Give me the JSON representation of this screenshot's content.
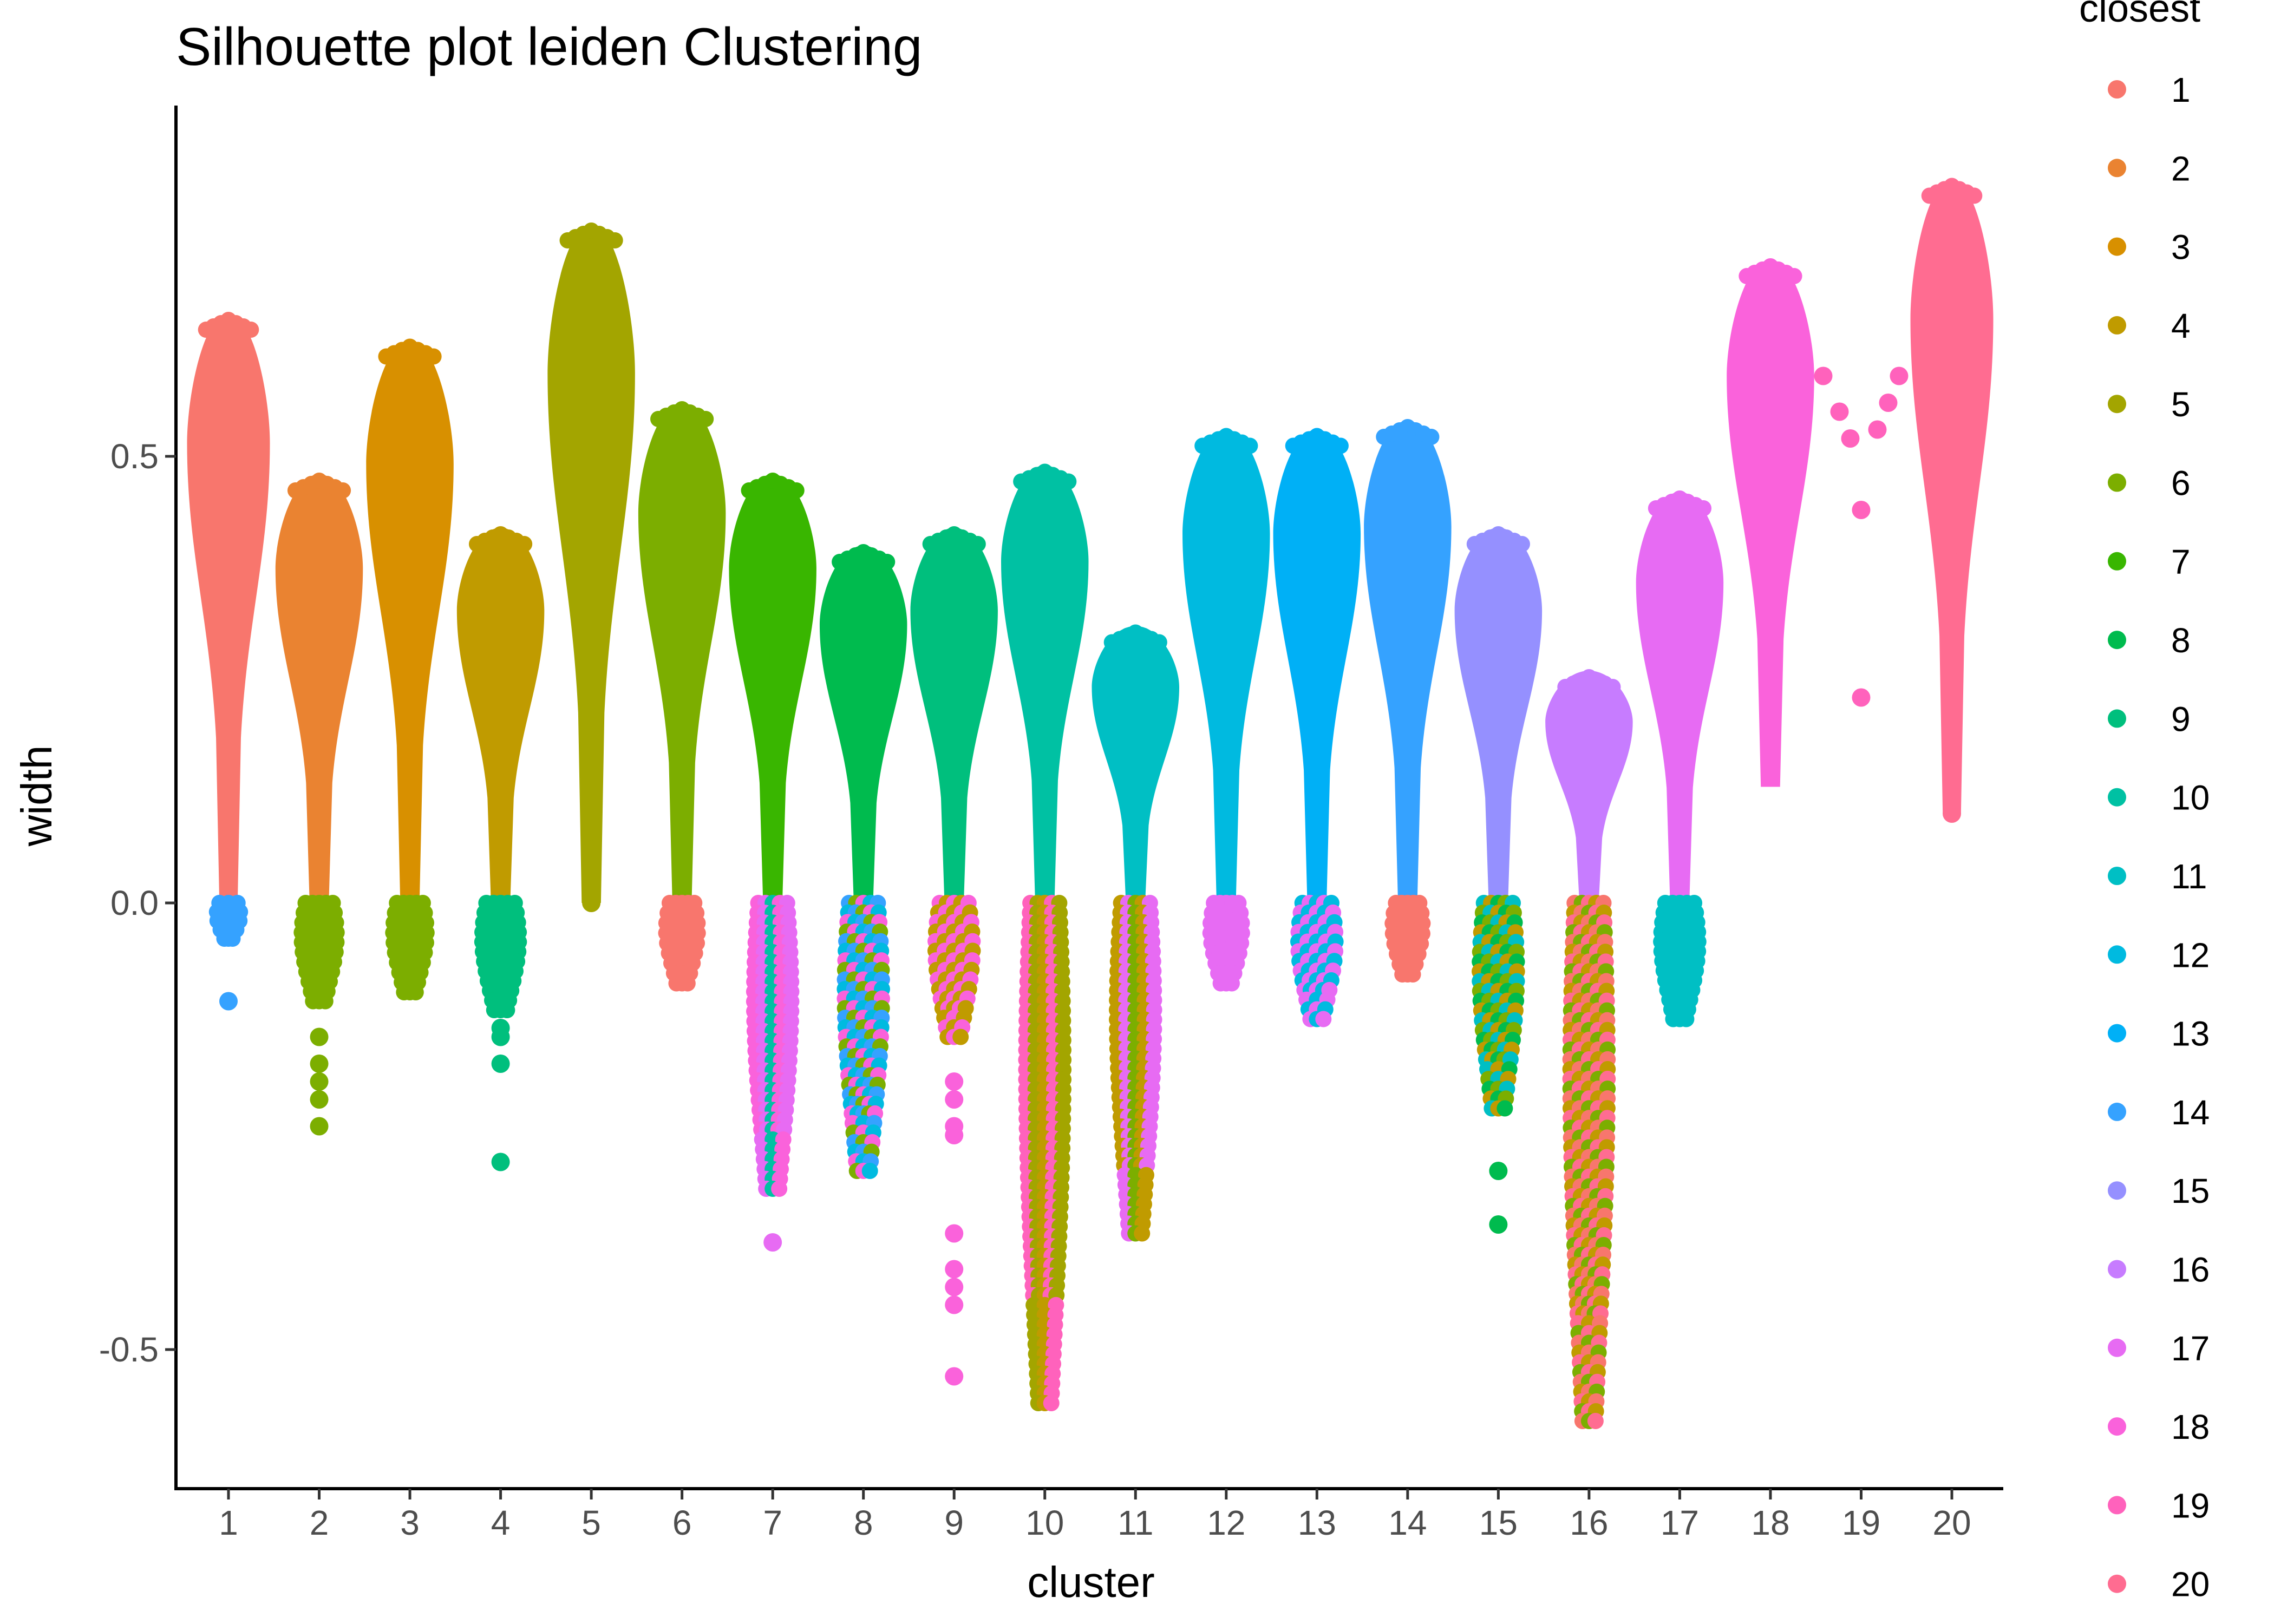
{
  "chart_data": {
    "type": "scatter",
    "title": "Silhouette plot leiden Clustering",
    "xlabel": "cluster",
    "ylabel": "width",
    "categories": [
      "1",
      "2",
      "3",
      "4",
      "5",
      "6",
      "7",
      "8",
      "9",
      "10",
      "11",
      "12",
      "13",
      "14",
      "15",
      "16",
      "17",
      "18",
      "19",
      "20"
    ],
    "ylim": [
      -0.65,
      0.88
    ],
    "yticks": [
      {
        "value": 0.5,
        "label": "0.5"
      },
      {
        "value": 0.0,
        "label": "0.0"
      },
      {
        "value": -0.5,
        "label": "-0.5"
      }
    ],
    "grid": false,
    "legend": {
      "title": "closest",
      "position": "right",
      "entries": [
        {
          "label": "1",
          "color": "#F8766D"
        },
        {
          "label": "2",
          "color": "#EA8331"
        },
        {
          "label": "3",
          "color": "#D89000"
        },
        {
          "label": "4",
          "color": "#C09B00"
        },
        {
          "label": "5",
          "color": "#A3A500"
        },
        {
          "label": "6",
          "color": "#7CAE00"
        },
        {
          "label": "7",
          "color": "#39B600"
        },
        {
          "label": "8",
          "color": "#00BB4E"
        },
        {
          "label": "9",
          "color": "#00BF7D"
        },
        {
          "label": "10",
          "color": "#00C1A3"
        },
        {
          "label": "11",
          "color": "#00BFC4"
        },
        {
          "label": "12",
          "color": "#00BAE0"
        },
        {
          "label": "13",
          "color": "#00B0F6"
        },
        {
          "label": "14",
          "color": "#35A2FF"
        },
        {
          "label": "15",
          "color": "#9590FF"
        },
        {
          "label": "16",
          "color": "#C77CFF"
        },
        {
          "label": "17",
          "color": "#E76BF3"
        },
        {
          "label": "18",
          "color": "#FA62DB"
        },
        {
          "label": "19",
          "color": "#FF62BC"
        },
        {
          "label": "20",
          "color": "#FF6C91"
        }
      ]
    },
    "clusters": [
      {
        "cluster": "1",
        "color": "#F8766D",
        "top": 0.66,
        "neg_min": -0.04,
        "outliers": [
          -0.11
        ],
        "neg_colors": [
          "#35A2FF"
        ],
        "halfwidth": 0.9
      },
      {
        "cluster": "2",
        "color": "#EA8331",
        "top": 0.48,
        "neg_min": -0.11,
        "outliers": [
          -0.15,
          -0.18,
          -0.2,
          -0.22,
          -0.25
        ],
        "neg_colors": [
          "#7CAE00"
        ],
        "halfwidth": 0.95
      },
      {
        "cluster": "3",
        "color": "#D89000",
        "top": 0.63,
        "neg_min": -0.1,
        "outliers": [],
        "neg_colors": [
          "#7CAE00"
        ],
        "halfwidth": 0.95
      },
      {
        "cluster": "4",
        "color": "#C09B00",
        "top": 0.42,
        "neg_min": -0.12,
        "outliers": [
          -0.14,
          -0.15,
          -0.18,
          -0.29
        ],
        "neg_colors": [
          "#00BF7D"
        ],
        "halfwidth": 0.95
      },
      {
        "cluster": "5",
        "color": "#A3A500",
        "top": 0.76,
        "neg_min": 0.0,
        "outliers": [
          0.66,
          0.6,
          0.55,
          0.5,
          0.45,
          0.4,
          0.37,
          0.33,
          0.27,
          0.22,
          0.17,
          0.12,
          0.08,
          0.01,
          0.0
        ],
        "neg_colors": [],
        "halfwidth": 0.95
      },
      {
        "cluster": "6",
        "color": "#7CAE00",
        "top": 0.56,
        "neg_min": -0.09,
        "outliers": [],
        "neg_colors": [
          "#F8766D"
        ],
        "halfwidth": 0.95
      },
      {
        "cluster": "7",
        "color": "#39B600",
        "top": 0.48,
        "neg_min": -0.32,
        "outliers": [
          -0.38
        ],
        "neg_colors": [
          "#00C1A3",
          "#FA62DB",
          "#E76BF3"
        ],
        "halfwidth": 0.95
      },
      {
        "cluster": "8",
        "color": "#00BB4E",
        "top": 0.4,
        "neg_min": -0.3,
        "outliers": [],
        "neg_colors": [
          "#00BAE0",
          "#35A2FF",
          "#7CAE00",
          "#FA62DB"
        ],
        "halfwidth": 0.95
      },
      {
        "cluster": "9",
        "color": "#00BF7D",
        "top": 0.42,
        "neg_min": -0.15,
        "outliers": [
          -0.2,
          -0.22,
          -0.25,
          -0.26,
          -0.37,
          -0.41,
          -0.43,
          -0.45,
          -0.53
        ],
        "neg_colors": [
          "#C09B00",
          "#FA62DB"
        ],
        "halfwidth": 0.95
      },
      {
        "cluster": "10",
        "color": "#00C1A3",
        "top": 0.49,
        "neg_min": -0.56,
        "outliers": [],
        "neg_colors": [
          "#C09B00",
          "#FF62BC",
          "#A3A500"
        ],
        "halfwidth": 0.95
      },
      {
        "cluster": "11",
        "color": "#00BFC4",
        "top": 0.31,
        "neg_min": -0.37,
        "outliers": [],
        "neg_colors": [
          "#7CAE00",
          "#C09B00",
          "#E76BF3"
        ],
        "halfwidth": 0.95
      },
      {
        "cluster": "12",
        "color": "#00BAE0",
        "top": 0.53,
        "neg_min": -0.09,
        "outliers": [],
        "neg_colors": [
          "#E76BF3"
        ],
        "halfwidth": 0.95
      },
      {
        "cluster": "13",
        "color": "#00B0F6",
        "top": 0.53,
        "neg_min": -0.13,
        "outliers": [],
        "neg_colors": [
          "#E76BF3",
          "#00BAE0"
        ],
        "halfwidth": 0.95
      },
      {
        "cluster": "14",
        "color": "#35A2FF",
        "top": 0.54,
        "neg_min": -0.08,
        "outliers": [],
        "neg_colors": [
          "#F8766D"
        ],
        "halfwidth": 0.95
      },
      {
        "cluster": "15",
        "color": "#9590FF",
        "top": 0.42,
        "neg_min": -0.23,
        "outliers": [
          -0.3,
          -0.36
        ],
        "neg_colors": [
          "#7CAE00",
          "#00BFC4",
          "#C09B00",
          "#00BB4E"
        ],
        "halfwidth": 0.95
      },
      {
        "cluster": "16",
        "color": "#C77CFF",
        "top": 0.26,
        "neg_min": -0.58,
        "outliers": [],
        "neg_colors": [
          "#C09B00",
          "#F8766D",
          "#7CAE00",
          "#FF6C91"
        ],
        "halfwidth": 0.95
      },
      {
        "cluster": "17",
        "color": "#E76BF3",
        "top": 0.46,
        "neg_min": -0.13,
        "outliers": [],
        "neg_colors": [
          "#00BFC4"
        ],
        "halfwidth": 0.95
      },
      {
        "cluster": "18",
        "color": "#FA62DB",
        "top": 0.72,
        "neg_min": 0.13,
        "outliers": [],
        "neg_colors": [],
        "halfwidth": 0.95
      },
      {
        "cluster": "19",
        "color": "#FF62BC",
        "top": 0.59,
        "neg_min": 0.22,
        "outliers": [
          0.59,
          0.55,
          0.52,
          0.53,
          0.56,
          0.59,
          0.44,
          0.23
        ],
        "neg_colors": [],
        "halfwidth": 0.1
      },
      {
        "cluster": "20",
        "color": "#FF6C91",
        "top": 0.81,
        "neg_min": 0.1,
        "outliers": [
          0.45,
          0.4,
          0.35,
          0.3,
          0.25,
          0.13,
          0.12,
          0.1
        ],
        "neg_colors": [],
        "halfwidth": 0.9
      }
    ]
  }
}
